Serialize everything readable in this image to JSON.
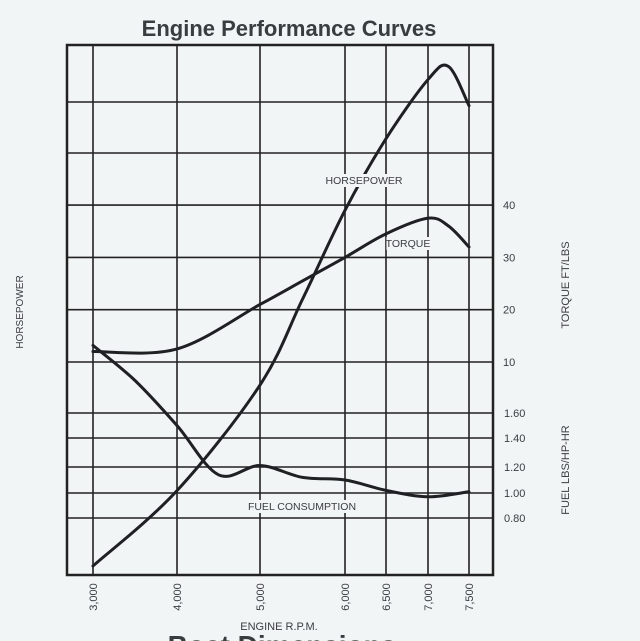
{
  "chart_data": {
    "type": "line",
    "title": "Engine Performance Curves",
    "xlabel": "ENGINE R.P.M.",
    "ylabel_left": "HORSEPOWER",
    "ylabel_right_top": "TORQUE FT/LBS",
    "ylabel_right_bottom": "FUEL LBS/HP-HR",
    "x_ticks": [
      "3,000",
      "4,000",
      "5,000",
      "6,000",
      "6,500",
      "7,000",
      "7,500"
    ],
    "x_tick_values": [
      3000,
      4000,
      5000,
      6000,
      6500,
      7000,
      7500
    ],
    "torque_ticks": [
      "40",
      "30",
      "20",
      "10"
    ],
    "torque_tick_values": [
      40,
      30,
      20,
      10
    ],
    "fuel_ticks": [
      "1.60",
      "1.40",
      "1.20",
      "1.00",
      "0.80"
    ],
    "fuel_tick_values": [
      1.6,
      1.4,
      1.2,
      1.0,
      0.8
    ],
    "grid": true,
    "series": [
      {
        "name": "HORSEPOWER",
        "axis": "torque-scale (unlabeled)",
        "x": [
          3000,
          4000,
          5000,
          5500,
          6000,
          6500,
          7000,
          7250,
          7500
        ],
        "y": [
          -29,
          -14.6,
          5.6,
          22,
          39,
          52.7,
          64,
          66.5,
          59
        ]
      },
      {
        "name": "TORQUE",
        "axis": "torque",
        "x": [
          3000,
          4000,
          5000,
          5500,
          6000,
          6500,
          7000,
          7250,
          7500
        ],
        "y": [
          12,
          12.5,
          21,
          25.5,
          30,
          34.5,
          37.5,
          36,
          32
        ]
      },
      {
        "name": "FUEL CONSUMPTION",
        "axis": "fuel",
        "x": [
          3000,
          3500,
          4000,
          4500,
          5000,
          5500,
          6000,
          6500,
          7000,
          7500
        ],
        "y": [
          2.12,
          1.85,
          1.5,
          1.14,
          1.21,
          1.12,
          1.1,
          1.02,
          0.97,
          1.01
        ]
      }
    ],
    "footer": "Boat Dimensions"
  }
}
